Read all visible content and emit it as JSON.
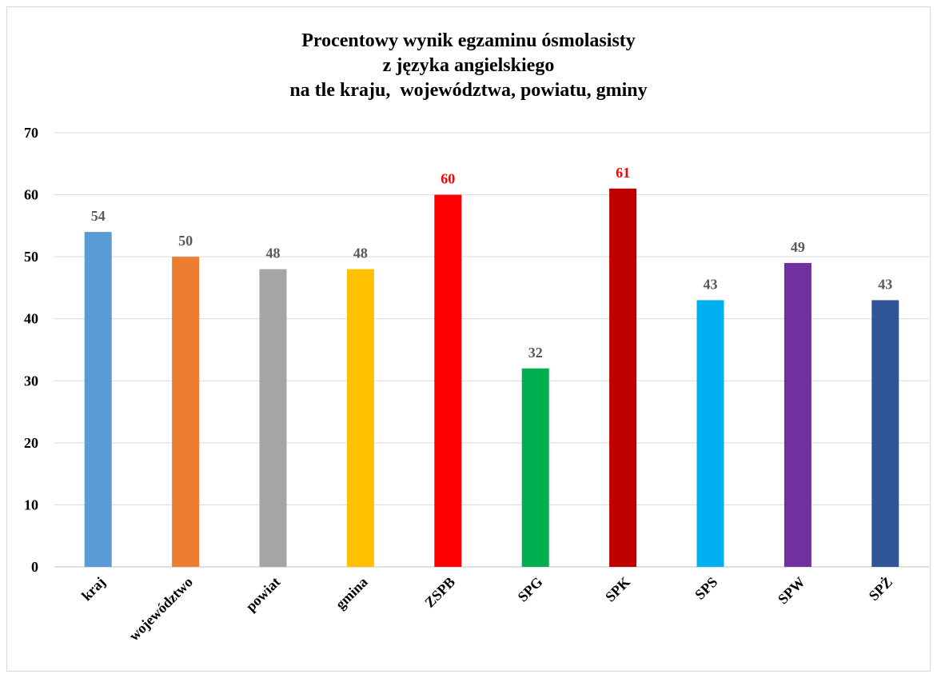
{
  "chart_data": {
    "type": "bar",
    "title_lines": [
      "Procentowy wynik egzaminu ósmolasisty",
      "z języka angielskiego",
      "na tle kraju,  województwa, powiatu, gminy"
    ],
    "categories": [
      "kraj",
      "województwo",
      "powiat",
      "gmina",
      "ZSPB",
      "SPG",
      "SPK",
      "SPS",
      "SPW",
      "SPŻ"
    ],
    "values": [
      54,
      50,
      48,
      48,
      60,
      32,
      61,
      43,
      49,
      43
    ],
    "bar_colors": [
      "#5B9BD5",
      "#ED7D31",
      "#A5A5A5",
      "#FFC000",
      "#FF0000",
      "#00B050",
      "#C00000",
      "#00B0F0",
      "#7030A0",
      "#2F5597"
    ],
    "data_label_colors": [
      "#595959",
      "#595959",
      "#595959",
      "#595959",
      "#FF0000",
      "#595959",
      "#FF0000",
      "#595959",
      "#595959",
      "#595959"
    ],
    "yticks": [
      "0",
      "10",
      "20",
      "30",
      "40",
      "50",
      "60",
      "70"
    ],
    "ylim": [
      0,
      70
    ],
    "xlabel": "",
    "ylabel": "",
    "grid": true,
    "legend": "none"
  }
}
